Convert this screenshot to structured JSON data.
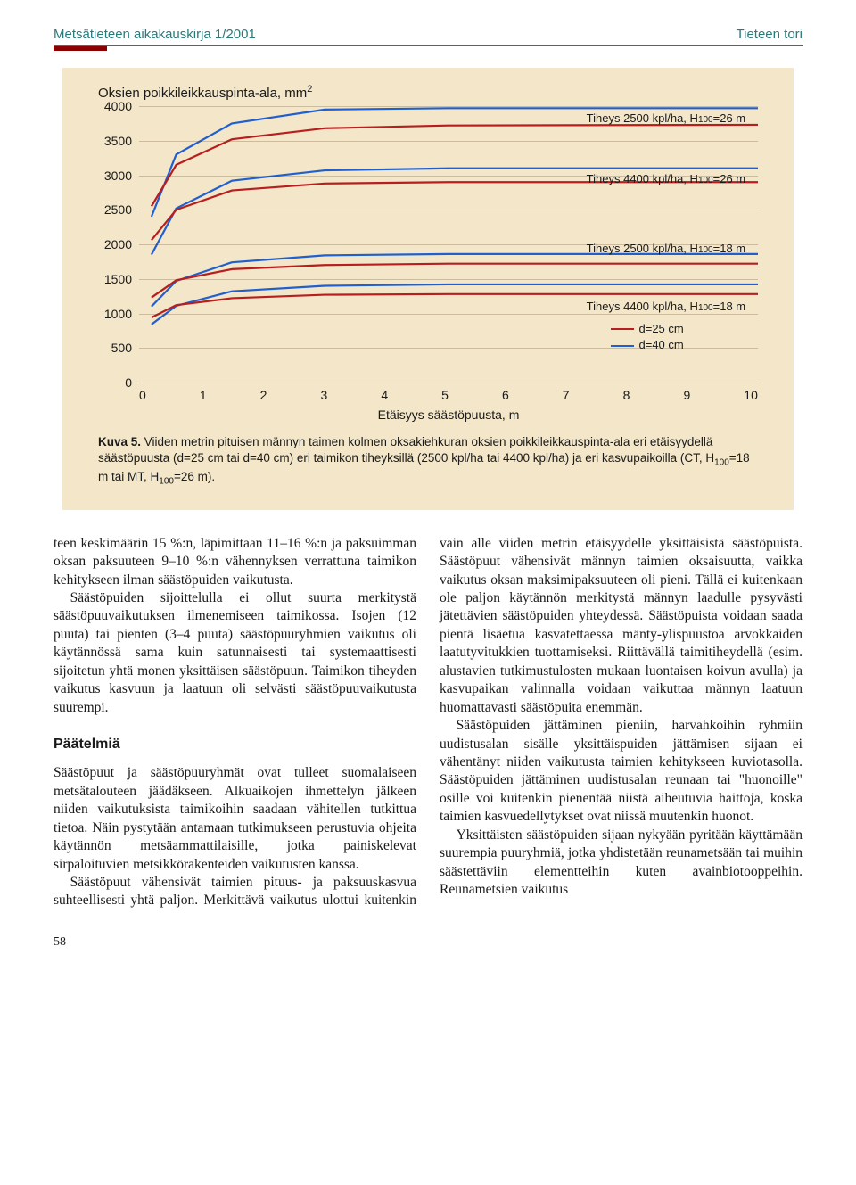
{
  "header": {
    "left": "Metsätieteen aikakauskirja 1/2001",
    "right": "Tieteen tori"
  },
  "chart": {
    "y_axis_title_main": "Oksien poikkileikkauspinta-ala, mm",
    "y_axis_title_sup": "2",
    "x_axis_title": "Etäisyys säästöpuusta, m",
    "ylim": [
      0,
      4000
    ],
    "ytick_step": 500,
    "xlim": [
      0,
      10
    ],
    "xtick_step": 1,
    "yticks": [
      "4000",
      "3500",
      "3000",
      "2500",
      "2000",
      "1500",
      "1000",
      "500",
      "0"
    ],
    "xticks": [
      "0",
      "1",
      "2",
      "3",
      "4",
      "5",
      "6",
      "7",
      "8",
      "9",
      "10"
    ],
    "series_labels": [
      {
        "text_main": "Tiheys 2500 kpl/ha, H",
        "text_sub": "100",
        "text_tail": "=26 m",
        "top_pct": 2
      },
      {
        "text_main": "Tiheys 4400 kpl/ha, H",
        "text_sub": "100",
        "text_tail": "=26 m",
        "top_pct": 24
      },
      {
        "text_main": "Tiheys 2500 kpl/ha, H",
        "text_sub": "100",
        "text_tail": "=18 m",
        "top_pct": 49
      },
      {
        "text_main": "Tiheys 4400 kpl/ha, H",
        "text_sub": "100",
        "text_tail": "=18 m",
        "top_pct": 70
      }
    ],
    "legend": [
      {
        "color": "#b81e1e",
        "label": "d=25 cm",
        "top_pct": 78
      },
      {
        "color": "#1f5fd0",
        "label": "d=40 cm",
        "top_pct": 84
      }
    ],
    "colors": {
      "red": "#b81e1e",
      "blue": "#1f5fd0",
      "bg": "#f3e6c9",
      "grid": "rgba(90,60,30,0.25)"
    },
    "line_width": 2.2,
    "curves": [
      {
        "color": "#1f5fd0",
        "points": [
          [
            2,
            2400
          ],
          [
            6,
            3300
          ],
          [
            15,
            3750
          ],
          [
            30,
            3950
          ],
          [
            50,
            3970
          ],
          [
            100,
            3970
          ]
        ]
      },
      {
        "color": "#b81e1e",
        "points": [
          [
            2,
            2550
          ],
          [
            6,
            3150
          ],
          [
            15,
            3520
          ],
          [
            30,
            3680
          ],
          [
            50,
            3720
          ],
          [
            100,
            3730
          ]
        ]
      },
      {
        "color": "#1f5fd0",
        "points": [
          [
            2,
            1850
          ],
          [
            6,
            2520
          ],
          [
            15,
            2920
          ],
          [
            30,
            3070
          ],
          [
            50,
            3100
          ],
          [
            100,
            3100
          ]
        ]
      },
      {
        "color": "#b81e1e",
        "points": [
          [
            2,
            2060
          ],
          [
            6,
            2500
          ],
          [
            15,
            2780
          ],
          [
            30,
            2880
          ],
          [
            50,
            2900
          ],
          [
            100,
            2900
          ]
        ]
      },
      {
        "color": "#1f5fd0",
        "points": [
          [
            2,
            1100
          ],
          [
            6,
            1470
          ],
          [
            15,
            1740
          ],
          [
            30,
            1840
          ],
          [
            50,
            1860
          ],
          [
            100,
            1860
          ]
        ]
      },
      {
        "color": "#b81e1e",
        "points": [
          [
            2,
            1230
          ],
          [
            6,
            1480
          ],
          [
            15,
            1640
          ],
          [
            30,
            1700
          ],
          [
            50,
            1720
          ],
          [
            100,
            1720
          ]
        ]
      },
      {
        "color": "#1f5fd0",
        "points": [
          [
            2,
            840
          ],
          [
            6,
            1110
          ],
          [
            15,
            1320
          ],
          [
            30,
            1400
          ],
          [
            50,
            1420
          ],
          [
            100,
            1420
          ]
        ]
      },
      {
        "color": "#b81e1e",
        "points": [
          [
            2,
            940
          ],
          [
            6,
            1120
          ],
          [
            15,
            1220
          ],
          [
            30,
            1270
          ],
          [
            50,
            1280
          ],
          [
            100,
            1280
          ]
        ]
      }
    ]
  },
  "caption": {
    "lead": "Kuva 5.",
    "body_a": " Viiden metrin pituisen männyn taimen kolmen oksakiehkuran oksien poikkileikkauspinta-ala eri etäisyydellä säästöpuusta (d=25 cm tai d=40 cm) eri taimikon tiheyksillä (2500 kpl/ha tai 4400 kpl/ha) ja eri kasvupaikoilla (CT, H",
    "body_sub1": "100",
    "body_b": "=18 m tai MT, H",
    "body_sub2": "100",
    "body_c": "=26 m)."
  },
  "text": {
    "p1": "teen keskimäärin 15 %:n, läpimittaan 11–16 %:n ja paksuimman oksan paksuuteen 9–10 %:n vähennyksen verrattuna taimikon kehitykseen ilman säästöpuiden vaikutusta.",
    "p2": "Säästöpuiden sijoittelulla ei ollut suurta merkitystä säästöpuuvaikutuksen ilmenemiseen taimikossa. Isojen (12 puuta) tai pienten (3–4 puuta) säästöpuuryhmien vaikutus oli käytännössä sama kuin satunnaisesti tai systemaattisesti sijoitetun yhtä monen yksittäisen säästöpuun. Taimikon tiheyden vaikutus kasvuun ja laatuun oli selvästi säästöpuuvaikutusta suurempi.",
    "h1": "Päätelmiä",
    "p3": "Säästöpuut ja säästöpuuryhmät ovat tulleet suomalaiseen metsätalouteen jäädäkseen. Alkuaikojen ihmettelyn jälkeen niiden vaikutuksista taimikoihin saadaan vähitellen tutkittua tietoa. Näin pystytään antamaan tutkimukseen perustuvia ohjeita käytännön metsäammattilaisille, jotka painiskelevat sirpaloituvien metsikkörakenteiden vaikutusten kanssa.",
    "p4": "Säästöpuut vähensivät taimien pituus- ja paksuuskasvua suhteellisesti yhtä paljon. Merkittävä vaikutus ulottui kuitenkin vain alle viiden metrin etäisyydelle yksittäisistä säästöpuista. Säästöpuut vähensivät männyn taimien oksaisuutta, vaikka vaikutus oksan maksimipaksuuteen oli pieni. Tällä ei kuitenkaan ole paljon käytännön merkitystä männyn laadulle pysyvästi jätettävien säästöpuiden yhteydessä. Säästöpuista voidaan saada pientä lisäetua kasvatettaessa mänty-ylispuustoa arvokkaiden laatutyvitukkien tuottamiseksi. Riittävällä taimitiheydellä (esim. alustavien tutkimustulosten mukaan luontaisen koivun avulla) ja kasvupaikan valinnalla voidaan vaikuttaa männyn laatuun huomattavasti säästöpuita enemmän.",
    "p5": "Säästöpuiden jättäminen pieniin, harvahkoihin ryhmiin uudistusalan sisälle yksittäispuiden jättämisen sijaan ei vähentänyt niiden vaikutusta taimien kehitykseen kuviotasolla. Säästöpuiden jättäminen uudistusalan reunaan tai \"huonoille\" osille voi kuitenkin pienentää niistä aiheutuvia haittoja, koska taimien kasvuedellytykset ovat niissä muutenkin huonot.",
    "p6": "Yksittäisten säästöpuiden sijaan nykyään pyritään käyttämään suurempia puuryhmiä, jotka yhdistetään reunametsään tai muihin säästettäviin elementteihin kuten avainbiotooppeihin. Reunametsien vaikutus"
  },
  "page_num": "58"
}
